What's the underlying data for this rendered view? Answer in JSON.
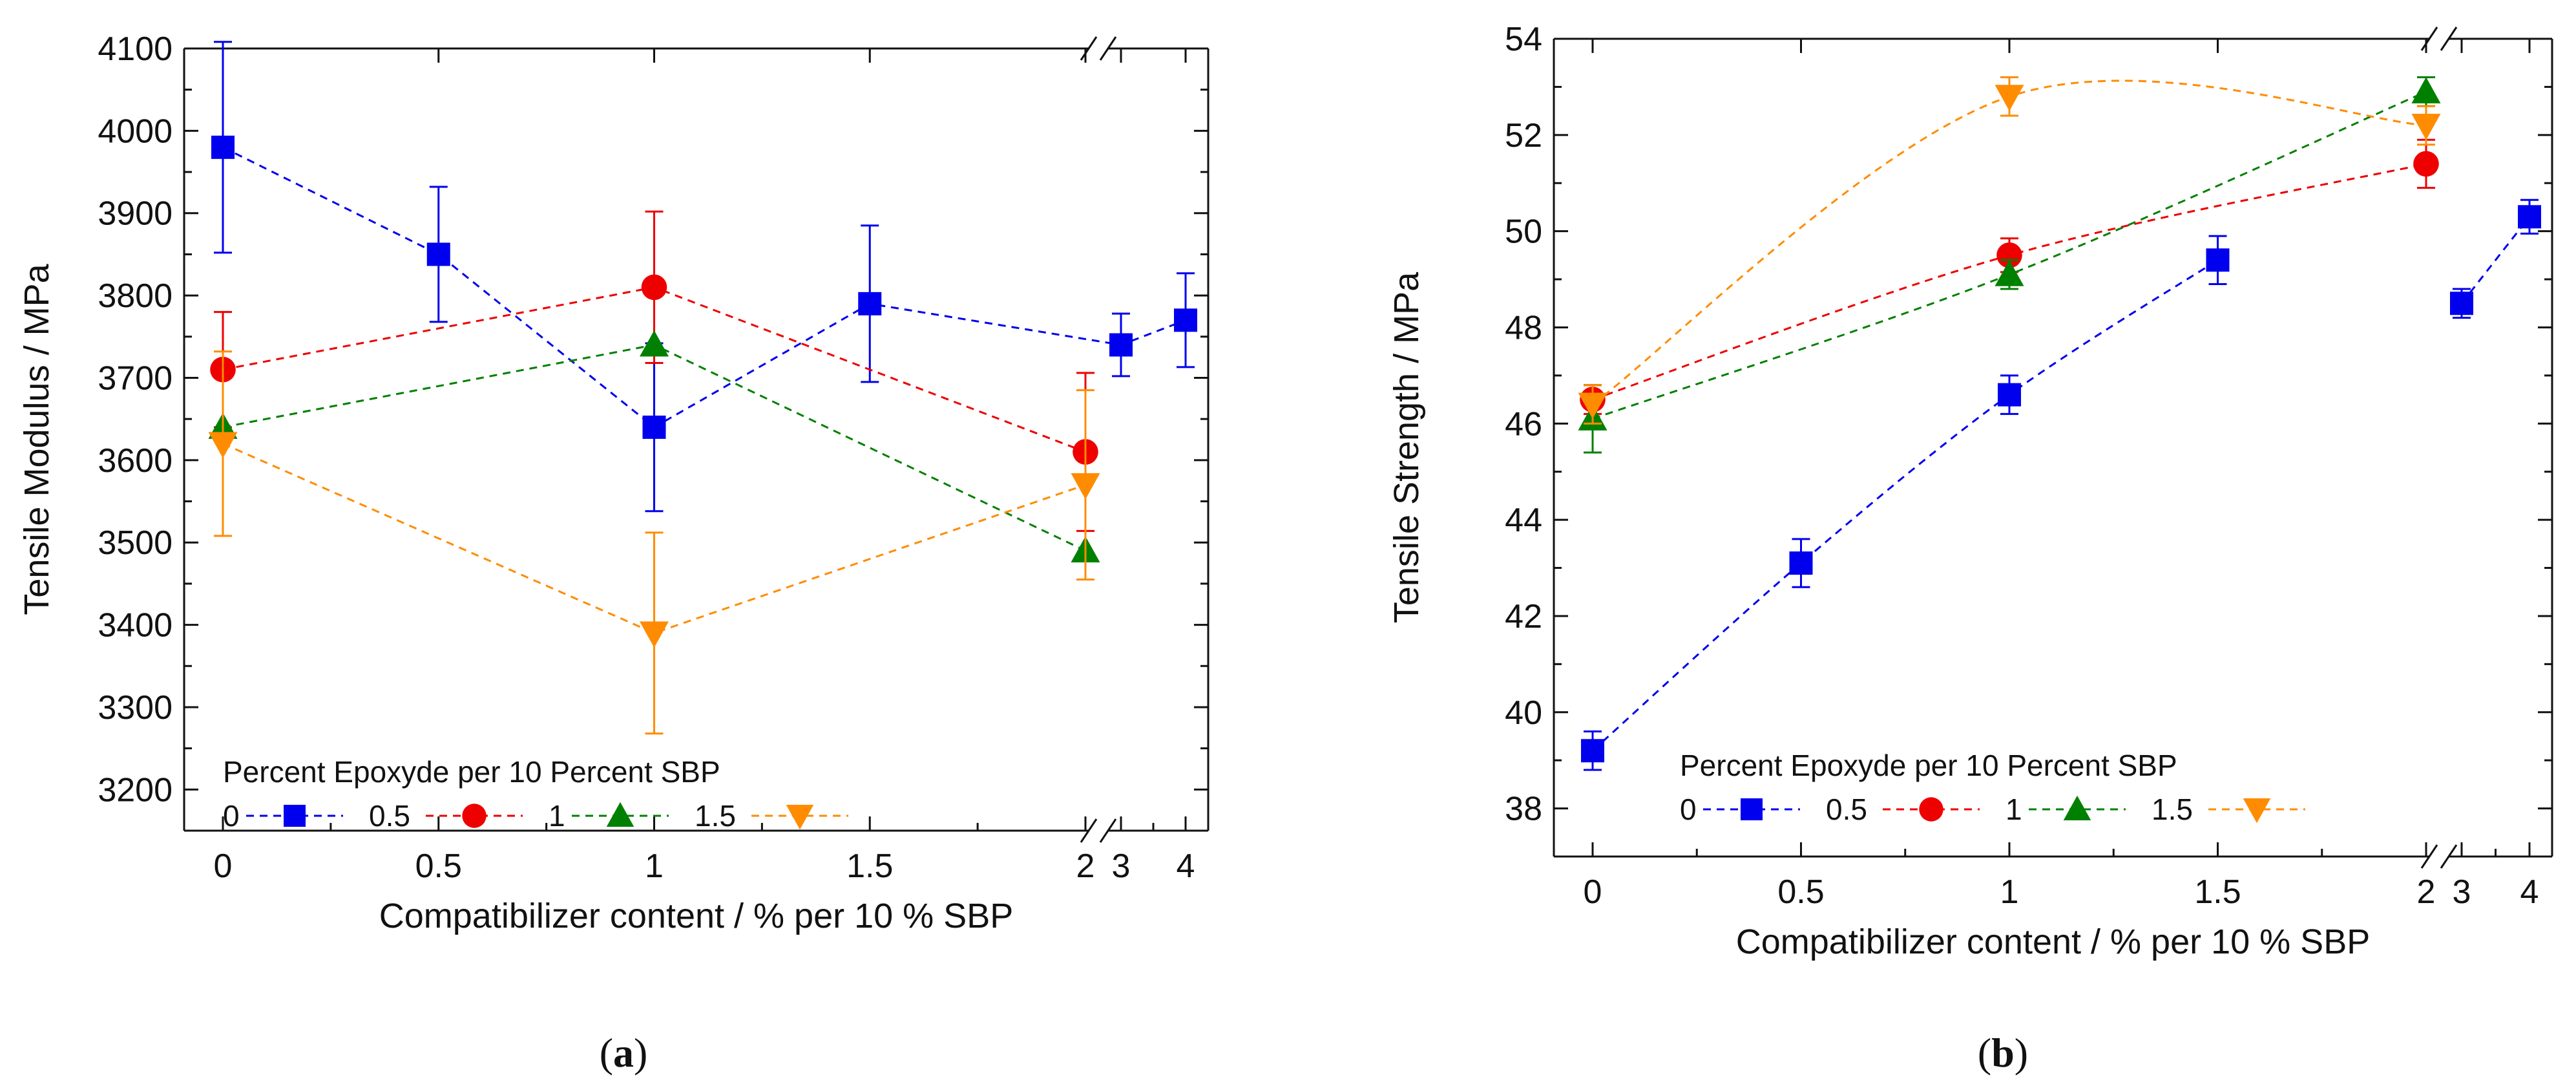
{
  "captions": {
    "a": "a",
    "b": "b"
  },
  "colors": {
    "s0": "#0000ee",
    "s05": "#ee0000",
    "s1": "#008000",
    "s15": "#ff8c00"
  },
  "chart_data": [
    {
      "id": "a",
      "type": "scatter",
      "ylabel": "Tensile Modulus / MPa",
      "xlabel": "Compatibilizer content / % per 10 % SBP",
      "ylim": [
        3150,
        4100
      ],
      "yticks": [
        3200,
        3300,
        3400,
        3500,
        3600,
        3700,
        3800,
        3900,
        4000,
        4100
      ],
      "ytick_labels": [
        "3200",
        "3300",
        "3400",
        "3500",
        "3600",
        "3700",
        "3800",
        "3900",
        "4000",
        "4100"
      ],
      "xticks": [
        0,
        0.5,
        1,
        1.5,
        2,
        3,
        4
      ],
      "xtick_labels": [
        "0",
        "0.5",
        "1",
        "1.5",
        "2",
        "3",
        "4"
      ],
      "axis_break": "between 2 and 3",
      "legend": {
        "title": "Percent Epoxyde per 10 Percent SBP",
        "placement": "bottom-left",
        "labels": [
          "0",
          "0.5",
          "1",
          "1.5"
        ]
      },
      "series": [
        {
          "name": "0",
          "marker": "square",
          "color": "#0000ee",
          "x": [
            0,
            0.5,
            1,
            1.5,
            3,
            4
          ],
          "y": [
            3980,
            3850,
            3640,
            3790,
            3740,
            3770
          ],
          "err": [
            128,
            82,
            102,
            95,
            38,
            57
          ]
        },
        {
          "name": "0.5",
          "marker": "circle",
          "color": "#ee0000",
          "x": [
            0,
            1,
            2
          ],
          "y": [
            3710,
            3810,
            3610
          ],
          "err": [
            70,
            92,
            96
          ]
        },
        {
          "name": "1",
          "marker": "triangle-up",
          "color": "#008000",
          "x": [
            0,
            1,
            2
          ],
          "y": [
            3640,
            3740,
            3490
          ],
          "err": [
            0,
            0,
            0
          ]
        },
        {
          "name": "1.5",
          "marker": "triangle-down",
          "color": "#ff8c00",
          "x": [
            0,
            1,
            2
          ],
          "y": [
            3620,
            3390,
            3570
          ],
          "err": [
            112,
            122,
            115
          ]
        }
      ]
    },
    {
      "id": "b",
      "type": "scatter",
      "ylabel": "Tensile Strength / MPa",
      "xlabel": "Compatibilizer content / % per 10 % SBP",
      "ylim": [
        37,
        54
      ],
      "yticks": [
        38,
        40,
        42,
        44,
        46,
        48,
        50,
        52,
        54
      ],
      "ytick_labels": [
        "38",
        "40",
        "42",
        "44",
        "46",
        "48",
        "50",
        "52",
        "54"
      ],
      "xticks": [
        0,
        0.5,
        1,
        1.5,
        2,
        3,
        4
      ],
      "xtick_labels": [
        "0",
        "0.5",
        "1",
        "1.5",
        "2",
        "3",
        "4"
      ],
      "axis_break": "between 2 and 3",
      "legend": {
        "title": "Percent Epoxyde per 10 Percent SBP",
        "placement": "bottom-left",
        "labels": [
          "0",
          "0.5",
          "1",
          "1.5"
        ]
      },
      "series": [
        {
          "name": "0",
          "marker": "square",
          "color": "#0000ee",
          "x": [
            0,
            0.5,
            1,
            1.5,
            3,
            4
          ],
          "y": [
            39.2,
            43.1,
            46.6,
            49.4,
            48.5,
            50.3
          ],
          "err": [
            0.4,
            0.5,
            0.4,
            0.5,
            0.3,
            0.35
          ]
        },
        {
          "name": "0.5",
          "marker": "circle",
          "color": "#ee0000",
          "x": [
            0,
            1,
            2
          ],
          "y": [
            46.5,
            49.5,
            51.4
          ],
          "err": [
            0.3,
            0.35,
            0.5
          ]
        },
        {
          "name": "1",
          "marker": "triangle-up",
          "color": "#008000",
          "x": [
            0,
            1,
            2
          ],
          "y": [
            46.1,
            49.1,
            52.9
          ],
          "err": [
            0.7,
            0.3,
            0.3
          ]
        },
        {
          "name": "1.5",
          "marker": "triangle-down",
          "color": "#ff8c00",
          "x": [
            0,
            1,
            2
          ],
          "y": [
            46.4,
            52.8,
            52.2
          ],
          "err": [
            0.4,
            0.4,
            0.4
          ]
        }
      ]
    }
  ]
}
